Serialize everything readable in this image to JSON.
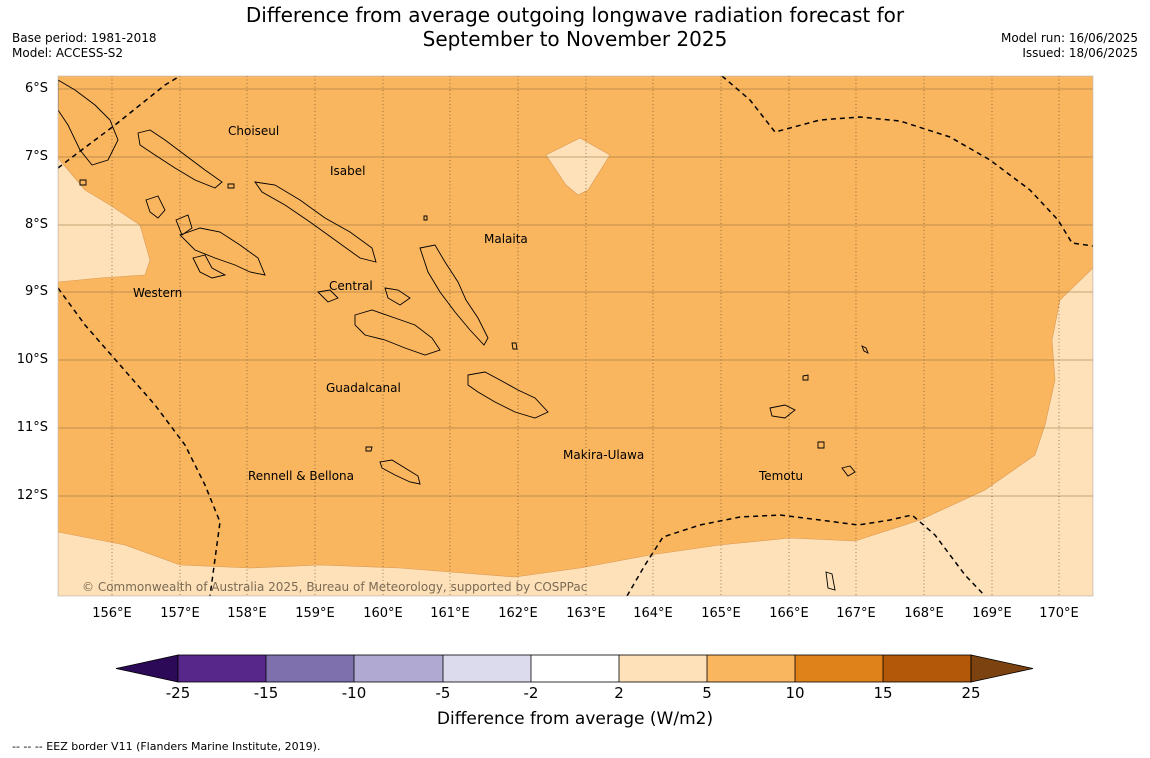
{
  "title_line1": "Difference from average outgoing longwave radiation forecast for",
  "title_line2": "September to November 2025",
  "meta_left": [
    "Base period: 1981-2018",
    "Model: ACCESS-S2"
  ],
  "meta_right": [
    "Model run: 16/06/2025",
    "Issued: 18/06/2025"
  ],
  "lat_labels": [
    "6°S",
    "7°S",
    "8°S",
    "9°S",
    "10°S",
    "11°S",
    "12°S"
  ],
  "lon_labels": [
    "156°E",
    "157°E",
    "158°E",
    "159°E",
    "160°E",
    "161°E",
    "162°E",
    "163°E",
    "164°E",
    "165°E",
    "166°E",
    "167°E",
    "168°E",
    "169°E",
    "170°E"
  ],
  "regions": [
    "Choiseul",
    "Isabel",
    "Malaita",
    "Western",
    "Central",
    "Guadalcanal",
    "Makira-Ulawa",
    "Rennell & Bellona",
    "Temotu"
  ],
  "copyright": "© Commonwealth of Australia 2025, Bureau of Meteorology, supported by COSPPac",
  "colorbar": {
    "ticks": [
      "-25",
      "-15",
      "-10",
      "-5",
      "-2",
      "2",
      "5",
      "10",
      "15",
      "25"
    ],
    "colors": [
      "#2d0a57",
      "#57278a",
      "#7e70ad",
      "#b0a9d2",
      "#dcdbed",
      "#ffffff",
      "#fee1b8",
      "#fab55f",
      "#e0821a",
      "#b25808",
      "#7c420f"
    ],
    "label": "Difference from average (W/m2)"
  },
  "footer": "--  --  -- EEZ border V11 (Flanders Marine Institute, 2019)."
}
